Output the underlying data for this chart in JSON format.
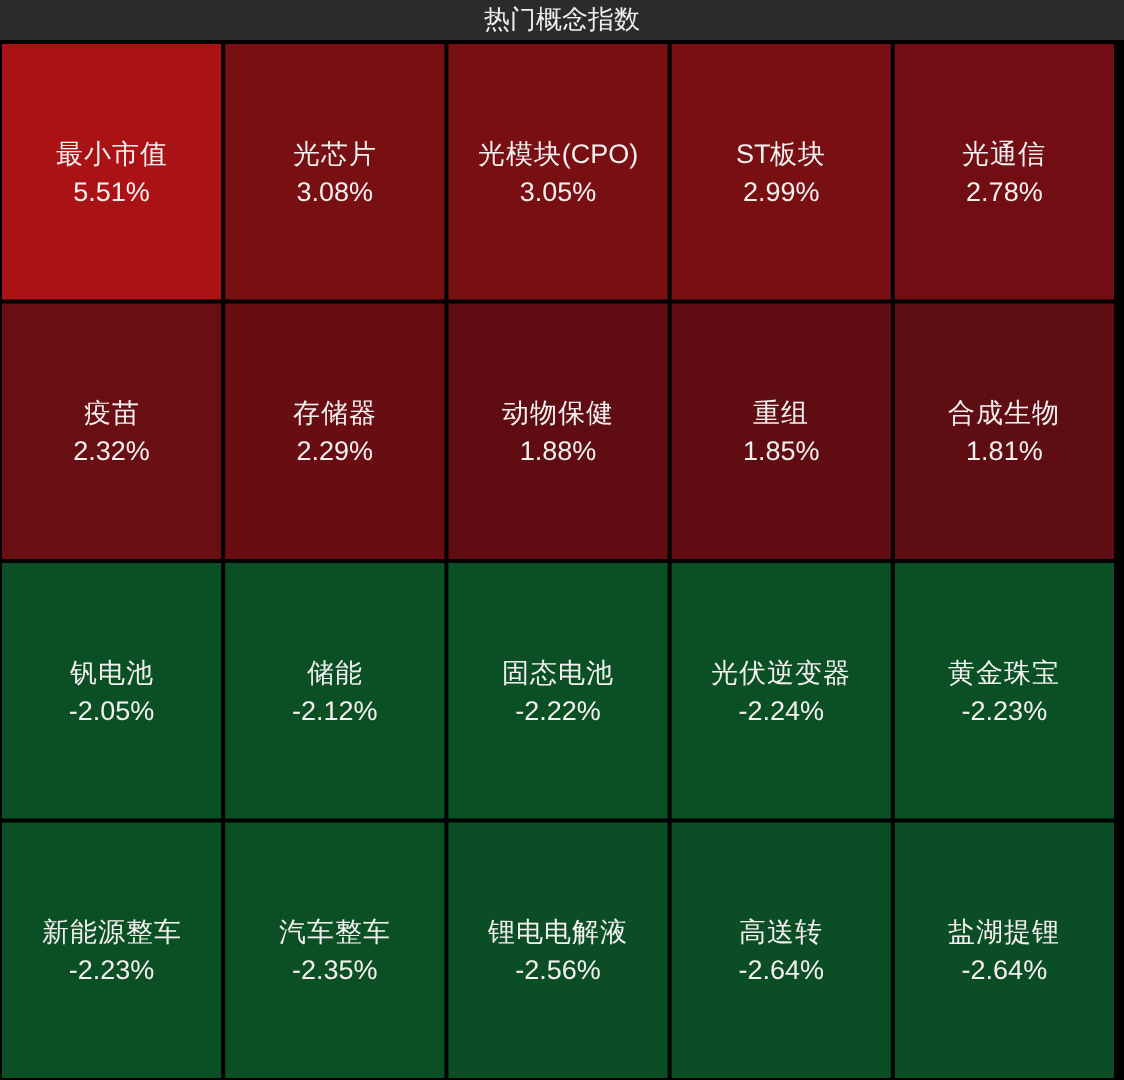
{
  "chart_data": {
    "type": "other",
    "title": "热门概念指数",
    "categories": [
      "最小市值",
      "光芯片",
      "光模块(CPO)",
      "ST板块",
      "光通信",
      "疫苗",
      "存储器",
      "动物保健",
      "重组",
      "合成生物",
      "钒电池",
      "储能",
      "固态电池",
      "光伏逆变器",
      "黄金珠宝",
      "新能源整车",
      "汽车整车",
      "锂电电解液",
      "高送转",
      "盐湖提锂"
    ],
    "values": [
      5.51,
      3.08,
      3.05,
      2.99,
      2.78,
      2.32,
      2.29,
      1.88,
      1.85,
      1.81,
      -2.05,
      -2.12,
      -2.22,
      -2.24,
      -2.23,
      -2.23,
      -2.35,
      -2.56,
      -2.64,
      -2.64
    ],
    "value_labels": [
      "5.51%",
      "3.08%",
      "3.05%",
      "2.99%",
      "2.78%",
      "2.32%",
      "2.29%",
      "1.88%",
      "1.85%",
      "1.81%",
      "-2.05%",
      "-2.12%",
      "-2.22%",
      "-2.24%",
      "-2.23%",
      "-2.23%",
      "-2.35%",
      "-2.56%",
      "-2.64%",
      "-2.64%"
    ]
  }
}
